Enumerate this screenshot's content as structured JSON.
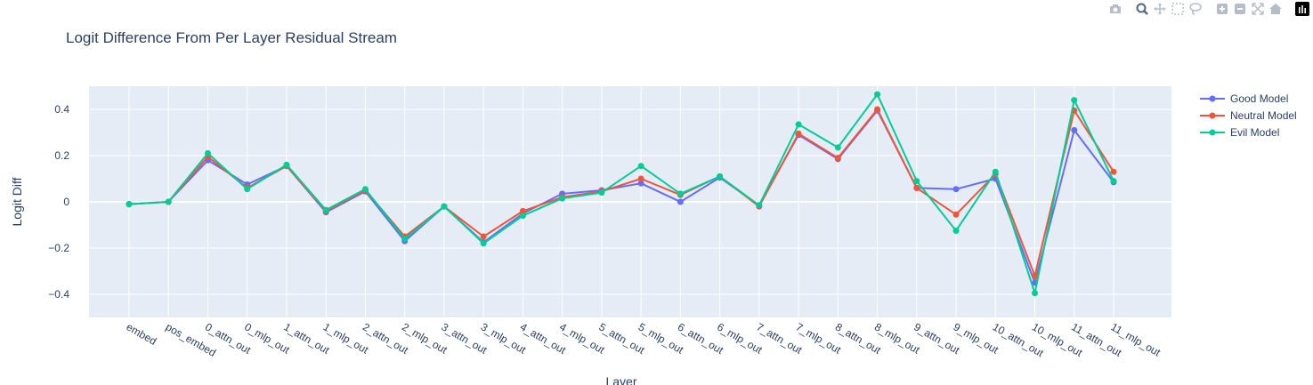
{
  "colors": {
    "plot_bg": "#e5ecf6",
    "grid": "#ffffff",
    "text": "#2a3f5f",
    "modebar_icon": "#b5bdc8",
    "modebar_active": "#506784"
  },
  "modebar": {
    "icons": [
      "camera-icon",
      "zoom-icon",
      "pan-icon",
      "box-select-icon",
      "lasso-select-icon",
      "zoom-in-icon",
      "zoom-out-icon",
      "autoscale-icon",
      "home-icon",
      "plotly-logo-icon"
    ]
  },
  "chart_data": {
    "type": "line",
    "title": "Logit Difference From Per Layer Residual Stream",
    "xlabel": "Layer",
    "ylabel": "Logit Diff",
    "ylim": [
      -0.5,
      0.5
    ],
    "yticks": [
      -0.4,
      -0.2,
      0,
      0.2,
      0.4
    ],
    "ytick_labels": [
      "−0.4",
      "−0.2",
      "0",
      "0.2",
      "0.4"
    ],
    "grid": true,
    "legend_position": "top-right",
    "categories": [
      "embed",
      "pos_embed",
      "0_attn_out",
      "0_mlp_out",
      "1_attn_out",
      "1_mlp_out",
      "2_attn_out",
      "2_mlp_out",
      "3_attn_out",
      "3_mlp_out",
      "4_attn_out",
      "4_mlp_out",
      "5_attn_out",
      "5_mlp_out",
      "6_attn_out",
      "6_mlp_out",
      "7_attn_out",
      "7_mlp_out",
      "8_attn_out",
      "8_mlp_out",
      "9_attn_out",
      "9_mlp_out",
      "10_attn_out",
      "10_mlp_out",
      "11_attn_out",
      "11_mlp_out"
    ],
    "series": [
      {
        "name": "Good Model",
        "color": "#636efa",
        "values": [
          -0.01,
          0.0,
          0.18,
          0.075,
          0.155,
          -0.045,
          0.045,
          -0.17,
          -0.02,
          -0.175,
          -0.05,
          0.035,
          0.05,
          0.08,
          0.0,
          0.105,
          -0.015,
          0.29,
          0.185,
          0.395,
          0.06,
          0.055,
          0.1,
          -0.35,
          0.31,
          0.085
        ]
      },
      {
        "name": "Neutral Model",
        "color": "#ef553b",
        "values": [
          -0.01,
          0.0,
          0.195,
          0.06,
          0.155,
          -0.04,
          0.05,
          -0.15,
          -0.02,
          -0.15,
          -0.04,
          0.02,
          0.045,
          0.1,
          0.03,
          0.11,
          -0.02,
          0.295,
          0.19,
          0.4,
          0.06,
          -0.055,
          0.12,
          -0.32,
          0.395,
          0.13
        ]
      },
      {
        "name": "Evil Model",
        "color": "#00cc96",
        "values": [
          -0.01,
          0.0,
          0.21,
          0.055,
          0.16,
          -0.035,
          0.055,
          -0.16,
          -0.02,
          -0.18,
          -0.06,
          0.015,
          0.04,
          0.155,
          0.035,
          0.11,
          -0.015,
          0.335,
          0.235,
          0.465,
          0.09,
          -0.125,
          0.13,
          -0.395,
          0.44,
          0.09
        ]
      }
    ]
  }
}
